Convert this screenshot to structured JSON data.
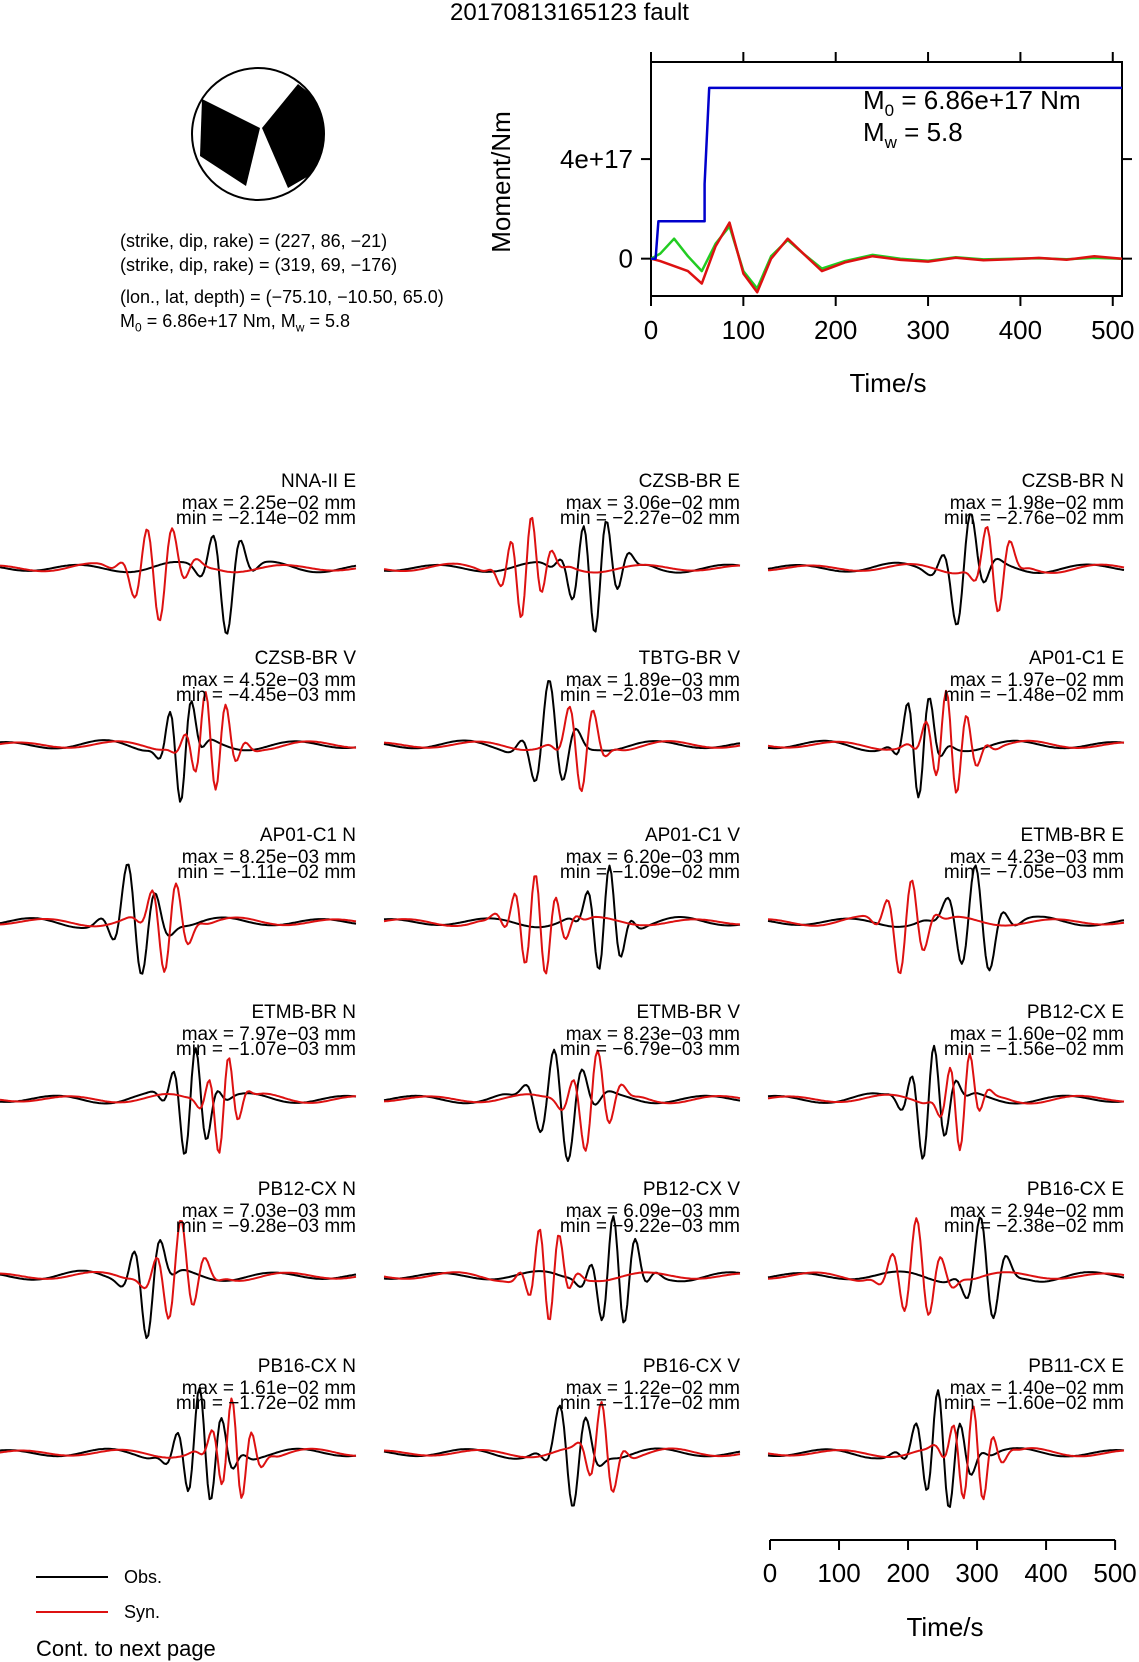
{
  "title": "20170813165123 fault",
  "mechanism": {
    "line1": "(strike, dip, rake) = (227, 86, −21)",
    "line2": "(strike, dip, rake) = (319, 69, −176)",
    "line3": "(lon., lat, depth) = (−75.10, −10.50, 65.0)",
    "m0_text": "M",
    "m0_sub": "0",
    "m0_rest": " = 6.86e+17 Nm, M",
    "mw_sub": "w",
    "mw_rest": " = 5.8"
  },
  "moment_plot": {
    "ylabel": "Moment/Nm",
    "xlabel": "Time/s",
    "y_tick_labels": [
      "0",
      "4e+17"
    ],
    "x_tick_labels": [
      "0",
      "100",
      "200",
      "300",
      "400",
      "500"
    ],
    "annot_m0": "M",
    "annot_m0_sub": "0",
    "annot_m0_rest": " = 6.86e+17 Nm",
    "annot_mw": "M",
    "annot_mw_sub": "w",
    "annot_mw_rest": " = 5.8"
  },
  "chart_data": {
    "moment": {
      "type": "line",
      "xlim": [
        0,
        510
      ],
      "ylim": [
        -1.5e+17,
        7.9e+17
      ],
      "cumulative_moment": {
        "color": "#0000cc",
        "x": [
          0,
          5,
          8,
          58,
          58,
          63,
          63,
          510
        ],
        "y": [
          0,
          0,
          1.5e+17,
          1.5e+17,
          3e+17,
          6.86e+17,
          6.86e+17,
          6.86e+17
        ]
      },
      "moment_rate_green": {
        "color": "#22cc22",
        "x": [
          0,
          10,
          25,
          40,
          55,
          70,
          85,
          100,
          115,
          130,
          148,
          165,
          185,
          210,
          240,
          270,
          300,
          330,
          360,
          390,
          420,
          450,
          480,
          510
        ],
        "y": [
          0,
          2e+16,
          8e+16,
          1e+16,
          -5e+16,
          6e+16,
          1.3e+17,
          -5e+16,
          -1.2e+17,
          1e+16,
          7.5e+16,
          2e+16,
          -4e+16,
          -1e+16,
          1.5e+16,
          0,
          -8000000000000000.0,
          6000000000000000.0,
          -3000000000000000.0,
          0,
          2000000000000000.0,
          -2000000000000000.0,
          3000000000000000.0,
          0
        ]
      },
      "moment_rate_red": {
        "color": "#dd1111",
        "x": [
          0,
          10,
          25,
          40,
          55,
          70,
          85,
          100,
          115,
          130,
          148,
          165,
          185,
          210,
          240,
          270,
          300,
          330,
          360,
          390,
          420,
          450,
          480,
          510
        ],
        "y": [
          0,
          -1e+16,
          -3e+16,
          -5e+16,
          -1e+17,
          5e+16,
          1.45e+17,
          -6e+16,
          -1.35e+17,
          0,
          8e+16,
          2e+16,
          -5e+16,
          -1.5e+16,
          1e+16,
          -5000000000000000.0,
          -1.2e+16,
          4000000000000000.0,
          -6000000000000000.0,
          -2000000000000000.0,
          3000000000000000.0,
          -4000000000000000.0,
          1e+16,
          0
        ]
      }
    },
    "traces": [
      {
        "station": "NNA-II E",
        "max": "max = 2.25e−02 mm",
        "min": "min = −2.14e−02 mm"
      },
      {
        "station": "CZSB-BR E",
        "max": "max = 3.06e−02 mm",
        "min": "min = −2.27e−02 mm"
      },
      {
        "station": "CZSB-BR N",
        "max": "max = 1.98e−02 mm",
        "min": "min = −2.76e−02 mm"
      },
      {
        "station": "CZSB-BR V",
        "max": "max = 4.52e−03 mm",
        "min": "min = −4.45e−03 mm"
      },
      {
        "station": "TBTG-BR V",
        "max": "max = 1.89e−03 mm",
        "min": "min = −2.01e−03 mm"
      },
      {
        "station": "AP01-C1 E",
        "max": "max = 1.97e−02 mm",
        "min": "min = −1.48e−02 mm"
      },
      {
        "station": "AP01-C1 N",
        "max": "max = 8.25e−03 mm",
        "min": "min = −1.11e−02 mm"
      },
      {
        "station": "AP01-C1 V",
        "max": "max = 6.20e−03 mm",
        "min": "min = −1.09e−02 mm"
      },
      {
        "station": "ETMB-BR E",
        "max": "max = 4.23e−03 mm",
        "min": "min = −7.05e−03 mm"
      },
      {
        "station": "ETMB-BR N",
        "max": "max = 7.97e−03 mm",
        "min": "min = −1.07e−03 mm"
      },
      {
        "station": "ETMB-BR V",
        "max": "max = 8.23e−03 mm",
        "min": "min = −6.79e−03 mm"
      },
      {
        "station": "PB12-CX E",
        "max": "max = 1.60e−02 mm",
        "min": "min = −1.56e−02 mm"
      },
      {
        "station": "PB12-CX N",
        "max": "max = 7.03e−03 mm",
        "min": "min = −9.28e−03 mm"
      },
      {
        "station": "PB12-CX V",
        "max": "max = 6.09e−03 mm",
        "min": "min = −9.22e−03 mm"
      },
      {
        "station": "PB16-CX E",
        "max": "max = 2.94e−02 mm",
        "min": "min = −2.38e−02 mm"
      },
      {
        "station": "PB16-CX N",
        "max": "max = 1.61e−02 mm",
        "min": "min = −1.72e−02 mm"
      },
      {
        "station": "PB16-CX V",
        "max": "max = 1.22e−02 mm",
        "min": "min = −1.17e−02 mm"
      },
      {
        "station": "PB11-CX E",
        "max": "max = 1.40e−02 mm",
        "min": "min = −1.60e−02 mm"
      }
    ],
    "trace_time_axis": {
      "xlim": [
        0,
        510
      ],
      "tick_labels": [
        "0",
        "100",
        "200",
        "300",
        "400",
        "500"
      ],
      "xlabel": "Time/s"
    }
  },
  "legend": {
    "obs_label": "Obs.",
    "obs_color": "#000000",
    "syn_label": "Syn.",
    "syn_color": "#dd1111"
  },
  "footer": {
    "continuation": "Cont. to next page"
  }
}
